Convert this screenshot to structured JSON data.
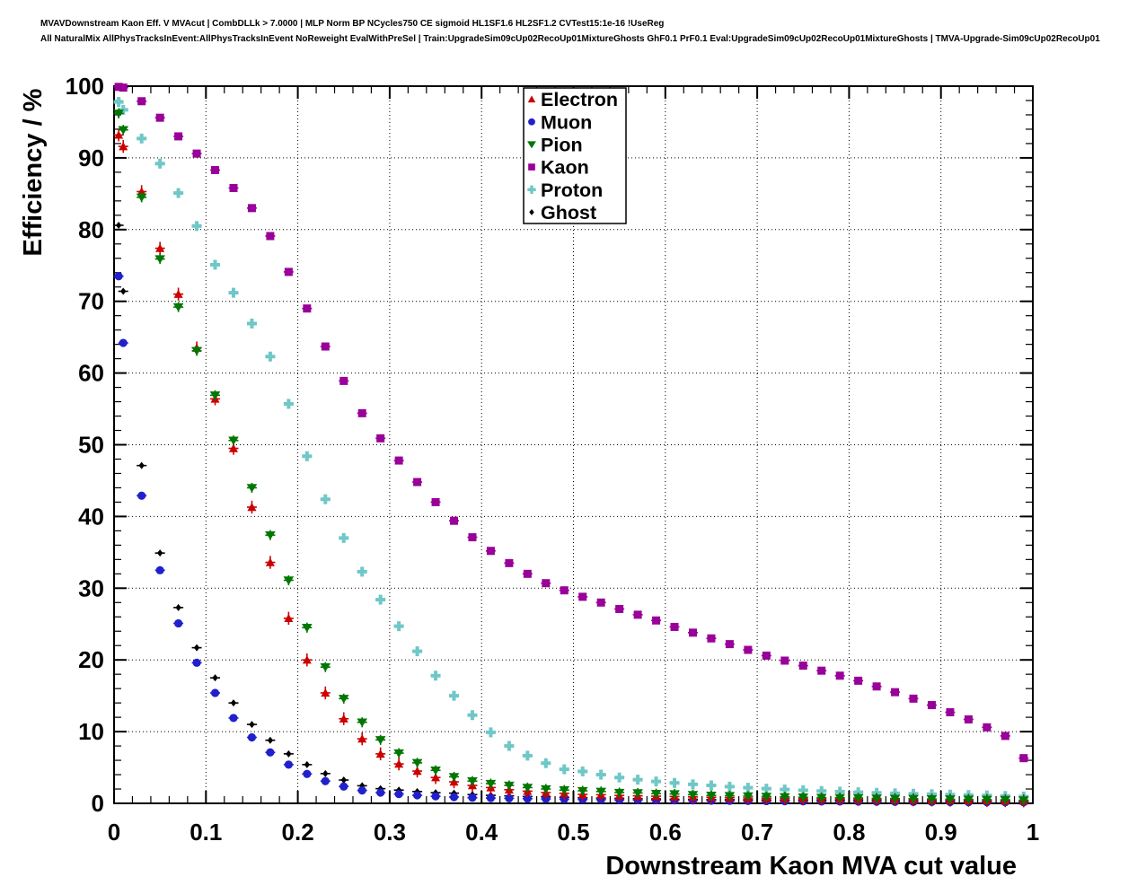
{
  "header": {
    "line1": "MVAVDownstream Kaon Eff. V MVAcut | CombDLLk > 7.0000 | MLP Norm BP NCycles750 CE sigmoid HL1SF1.6 HL2SF1.2 CVTest15:1e-16 !UseReg",
    "line2": "All NaturalMix AllPhysTracksInEvent:AllPhysTracksInEvent NoReweight EvalWithPreSel | Train:UpgradeSim09cUp02RecoUp01MixtureGhosts GhF0.1 PrF0.1 Eval:UpgradeSim09cUp02RecoUp01MixtureGhosts | TMVA-Upgrade-Sim09cUp02RecoUp01"
  },
  "chart_data": {
    "type": "scatter",
    "xlabel": "Downstream Kaon MVA cut value",
    "ylabel": "Efficiency / %",
    "xlim": [
      0,
      1
    ],
    "ylim": [
      0,
      100
    ],
    "x_tick_labels": [
      "0",
      "0.1",
      "0.2",
      "0.3",
      "0.4",
      "0.5",
      "0.6",
      "0.7",
      "0.8",
      "0.9",
      "1"
    ],
    "y_tick_labels": [
      "0",
      "10",
      "20",
      "30",
      "40",
      "50",
      "60",
      "70",
      "80",
      "90",
      "100"
    ],
    "x_minor_step": 0.02,
    "y_minor_step": 2,
    "grid": "dotted",
    "legend_position": "top-center",
    "x": [
      0.005,
      0.01,
      0.03,
      0.05,
      0.07,
      0.09,
      0.11,
      0.13,
      0.15,
      0.17,
      0.19,
      0.21,
      0.23,
      0.25,
      0.27,
      0.29,
      0.31,
      0.33,
      0.35,
      0.37,
      0.39,
      0.41,
      0.43,
      0.45,
      0.47,
      0.49,
      0.51,
      0.53,
      0.55,
      0.57,
      0.59,
      0.61,
      0.63,
      0.65,
      0.67,
      0.69,
      0.71,
      0.73,
      0.75,
      0.77,
      0.79,
      0.81,
      0.83,
      0.85,
      0.87,
      0.89,
      0.91,
      0.93,
      0.95,
      0.97,
      0.99
    ],
    "series": [
      {
        "name": "Proton",
        "marker": "plus",
        "color": "#70c7c7",
        "yerr": 0.35,
        "values": [
          97.8,
          96.7,
          92.7,
          89.2,
          85.1,
          80.5,
          75.1,
          71.2,
          66.9,
          62.3,
          55.7,
          48.4,
          42.4,
          37.0,
          32.3,
          28.4,
          24.7,
          21.2,
          17.8,
          15.0,
          12.3,
          9.9,
          8.0,
          6.65,
          5.6,
          4.75,
          4.45,
          4.0,
          3.6,
          3.3,
          3.05,
          2.85,
          2.65,
          2.5,
          2.33,
          2.18,
          2.05,
          1.93,
          1.82,
          1.72,
          1.63,
          1.55,
          1.47,
          1.4,
          1.34,
          1.28,
          1.22,
          1.16,
          1.1,
          1.03,
          0.95
        ]
      },
      {
        "name": "Ghost",
        "marker": "diamond",
        "color": "#000000",
        "yerr": 0.3,
        "values": [
          80.6,
          71.4,
          47.1,
          34.9,
          27.3,
          21.7,
          17.5,
          14.0,
          11.0,
          8.8,
          6.9,
          5.4,
          4.15,
          3.25,
          2.45,
          2.05,
          1.85,
          1.65,
          1.48,
          1.42,
          1.22,
          1.12,
          1.05,
          0.95,
          0.9,
          0.85,
          0.78,
          0.74,
          0.7,
          0.66,
          0.62,
          0.58,
          0.56,
          0.54,
          0.52,
          0.5,
          0.48,
          0.46,
          0.44,
          0.42,
          0.41,
          0.4,
          0.38,
          0.37,
          0.35,
          0.34,
          0.33,
          0.32,
          0.3,
          0.29,
          0.28
        ]
      },
      {
        "name": "Muon",
        "marker": "circle",
        "color": "#2020cc",
        "yerr": 0.3,
        "values": [
          73.5,
          64.2,
          42.9,
          32.5,
          25.1,
          19.6,
          15.4,
          11.9,
          9.2,
          7.1,
          5.4,
          4.1,
          3.1,
          2.35,
          1.8,
          1.5,
          1.3,
          1.12,
          0.98,
          0.88,
          0.79,
          0.74,
          0.7,
          0.65,
          0.62,
          0.58,
          0.55,
          0.52,
          0.48,
          0.46,
          0.44,
          0.42,
          0.4,
          0.37,
          0.35,
          0.33,
          0.32,
          0.3,
          0.28,
          0.27,
          0.26,
          0.25,
          0.24,
          0.22,
          0.21,
          0.2,
          0.19,
          0.18,
          0.17,
          0.16,
          0.15
        ]
      },
      {
        "name": "Electron",
        "marker": "triangle-up",
        "color": "#cc0000",
        "yerr": 0.9,
        "values": [
          93.2,
          91.6,
          85.3,
          77.4,
          71.0,
          63.5,
          56.4,
          49.5,
          41.3,
          33.6,
          25.8,
          20.0,
          15.4,
          11.8,
          9.0,
          6.9,
          5.5,
          4.5,
          3.6,
          3.0,
          2.5,
          2.2,
          1.9,
          1.7,
          1.5,
          1.4,
          1.25,
          1.2,
          1.1,
          1.05,
          1.0,
          0.95,
          0.9,
          0.85,
          0.8,
          0.75,
          0.72,
          0.7,
          0.65,
          0.62,
          0.6,
          0.57,
          0.55,
          0.52,
          0.5,
          0.47,
          0.45,
          0.42,
          0.4,
          0.37,
          0.35
        ]
      },
      {
        "name": "Pion",
        "marker": "triangle-down",
        "color": "#007700",
        "yerr": 0.7,
        "values": [
          96.2,
          93.9,
          84.5,
          75.9,
          69.2,
          63.1,
          56.9,
          50.6,
          44.0,
          37.4,
          31.1,
          24.5,
          19.0,
          14.6,
          11.3,
          8.85,
          7.0,
          5.65,
          4.6,
          3.7,
          3.1,
          2.75,
          2.5,
          2.2,
          2.0,
          1.85,
          1.75,
          1.65,
          1.5,
          1.45,
          1.35,
          1.3,
          1.2,
          1.1,
          1.05,
          1.0,
          0.95,
          0.9,
          0.85,
          0.8,
          0.78,
          0.75,
          0.7,
          0.67,
          0.64,
          0.6,
          0.58,
          0.55,
          0.52,
          0.5,
          0.45
        ]
      },
      {
        "name": "Kaon",
        "marker": "square",
        "color": "#990099",
        "yerr": 0.3,
        "values": [
          99.9,
          99.8,
          97.9,
          95.6,
          93.0,
          90.6,
          88.3,
          85.8,
          83.0,
          79.1,
          74.1,
          69.0,
          63.7,
          58.9,
          54.4,
          50.9,
          47.8,
          44.8,
          42.0,
          39.4,
          37.1,
          35.2,
          33.5,
          32.0,
          30.7,
          29.7,
          28.8,
          28.0,
          27.1,
          26.3,
          25.5,
          24.6,
          23.8,
          23.0,
          22.2,
          21.4,
          20.6,
          19.9,
          19.2,
          18.5,
          17.8,
          17.1,
          16.3,
          15.5,
          14.6,
          13.7,
          12.7,
          11.7,
          10.6,
          9.4,
          6.3
        ]
      }
    ]
  },
  "legend": {
    "entries": [
      {
        "label": "Electron",
        "marker": "triangle-up",
        "color": "#cc0000"
      },
      {
        "label": "Muon",
        "marker": "circle",
        "color": "#2020cc"
      },
      {
        "label": "Pion",
        "marker": "triangle-down",
        "color": "#007700"
      },
      {
        "label": "Kaon",
        "marker": "square",
        "color": "#990099"
      },
      {
        "label": "Proton",
        "marker": "plus",
        "color": "#70c7c7"
      },
      {
        "label": "Ghost",
        "marker": "diamond",
        "color": "#000000"
      }
    ]
  },
  "colors": {
    "background": "#ffffff",
    "frame": "#000000",
    "grid": "#000000",
    "text": "#000000"
  }
}
